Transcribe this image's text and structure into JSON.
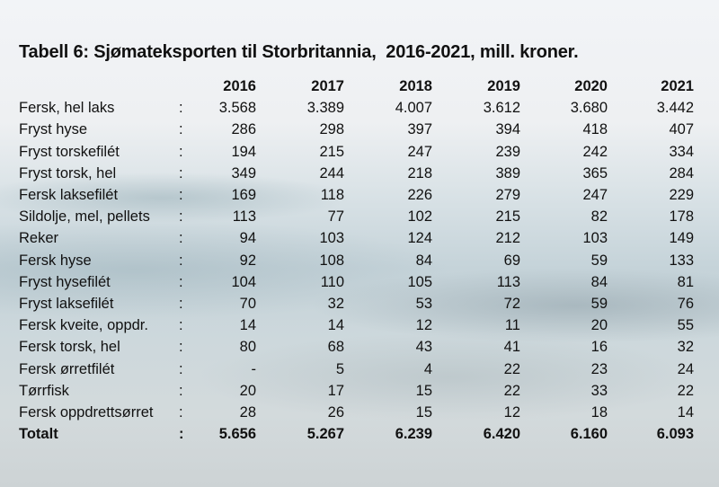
{
  "title": "Tabell 6: Sjømateksporten til Storbritannia,  2016-2021, mill. kroner.",
  "columns": [
    "2016",
    "2017",
    "2018",
    "2019",
    "2020",
    "2021"
  ],
  "rows": [
    {
      "name": "Fersk, hel laks",
      "sep": ":",
      "values": [
        "3.568",
        "3.389",
        "4.007",
        "3.612",
        "3.680",
        "3.442"
      ]
    },
    {
      "name": "Fryst hyse",
      "sep": ":",
      "values": [
        "286",
        "298",
        "397",
        "394",
        "418",
        "407"
      ]
    },
    {
      "name": "Fryst torskefilét",
      "sep": ":",
      "values": [
        "194",
        "215",
        "247",
        "239",
        "242",
        "334"
      ]
    },
    {
      "name": "Fryst torsk, hel",
      "sep": ":",
      "values": [
        "349",
        "244",
        "218",
        "389",
        "365",
        "284"
      ]
    },
    {
      "name": "Fersk laksefilét",
      "sep": ":",
      "values": [
        "169",
        "118",
        "226",
        "279",
        "247",
        "229"
      ]
    },
    {
      "name": "Sildolje, mel, pellets",
      "sep": ":",
      "values": [
        "113",
        "77",
        "102",
        "215",
        "82",
        "178"
      ]
    },
    {
      "name": "Reker",
      "sep": ":",
      "values": [
        "94",
        "103",
        "124",
        "212",
        "103",
        "149"
      ]
    },
    {
      "name": "Fersk hyse",
      "sep": ":",
      "values": [
        "92",
        "108",
        "84",
        "69",
        "59",
        "133"
      ]
    },
    {
      "name": "Fryst hysefilét",
      "sep": ":",
      "values": [
        "104",
        "110",
        "105",
        "113",
        "84",
        "81"
      ]
    },
    {
      "name": "Fryst laksefilét",
      "sep": ":",
      "values": [
        "70",
        "32",
        "53",
        "72",
        "59",
        "76"
      ]
    },
    {
      "name": "Fersk kveite, oppdr.",
      "sep": ":",
      "values": [
        "14",
        "14",
        "12",
        "11",
        "20",
        "55"
      ]
    },
    {
      "name": "Fersk torsk, hel",
      "sep": ":",
      "values": [
        "80",
        "68",
        "43",
        "41",
        "16",
        "32"
      ]
    },
    {
      "name": "Fersk ørretfilét",
      "sep": ":",
      "values": [
        "-",
        "5",
        "4",
        "22",
        "23",
        "24"
      ]
    },
    {
      "name": "Tørrfisk",
      "sep": ":",
      "values": [
        "20",
        "17",
        "15",
        "22",
        "33",
        "22"
      ]
    },
    {
      "name": "Fersk oppdrettsørret",
      "sep": ":",
      "values": [
        "28",
        "26",
        "15",
        "12",
        "18",
        "14"
      ]
    }
  ],
  "total": {
    "name": "Totalt",
    "sep": ":",
    "values": [
      "5.656",
      "5.267",
      "6.239",
      "6.420",
      "6.160",
      "6.093"
    ]
  }
}
